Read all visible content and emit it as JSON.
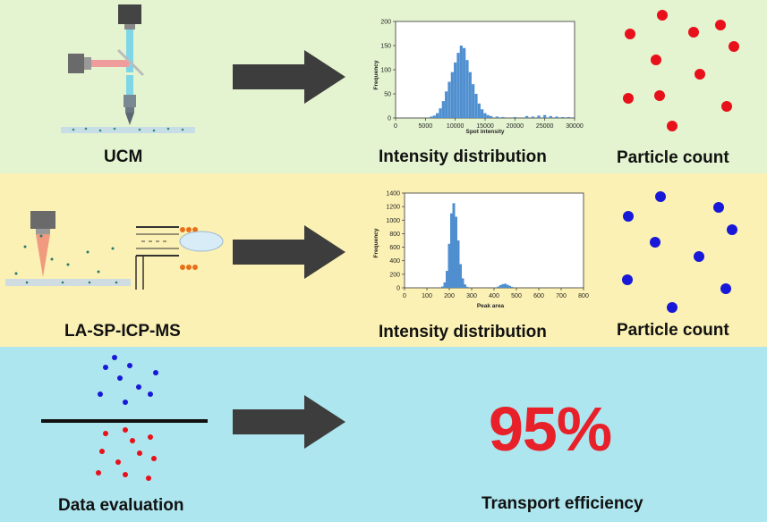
{
  "colors": {
    "band1": "#e4f4d0",
    "band2": "#fbf1b4",
    "band3": "#ade6ee",
    "red": "#e8101a",
    "blue": "#1818d8",
    "arrow": "#3d3d3d",
    "bar": "#4f8fcf",
    "big_red": "#e8202a"
  },
  "rows": {
    "ucm": {
      "method_label": "UCM",
      "result_label": "Intensity distribution",
      "count_label": "Particle count"
    },
    "laspicpms": {
      "method_label": "LA-SP-ICP-MS",
      "result_label": "Intensity distribution",
      "count_label": "Particle count"
    },
    "evaluation": {
      "method_label": "Data evaluation",
      "result_value": "95%",
      "result_label": "Transport efficiency"
    }
  },
  "chart_data": [
    {
      "type": "bar",
      "title": "",
      "xlabel": "Spot intensity",
      "ylabel": "Frequency",
      "xlim": [
        0,
        30000
      ],
      "ylim": [
        0,
        200
      ],
      "xticks": [
        "0",
        "5000",
        "10000",
        "15000",
        "20000",
        "25000",
        "30000"
      ],
      "yticks": [
        "0",
        "50",
        "100",
        "150",
        "200"
      ],
      "x": [
        6000,
        6500,
        7000,
        7500,
        8000,
        8500,
        9000,
        9500,
        10000,
        10500,
        11000,
        11500,
        12000,
        12500,
        13000,
        13500,
        14000,
        14500,
        15000,
        15500,
        16000,
        17000,
        18000,
        20000,
        22000,
        23000,
        24000,
        25000,
        26000,
        27000,
        28000,
        29000
      ],
      "values": [
        3,
        5,
        10,
        20,
        35,
        55,
        75,
        95,
        115,
        135,
        150,
        145,
        120,
        95,
        70,
        50,
        30,
        18,
        10,
        6,
        4,
        3,
        2,
        2,
        4,
        3,
        5,
        6,
        4,
        3,
        2,
        2
      ]
    },
    {
      "type": "bar",
      "title": "",
      "xlabel": "Peak area",
      "ylabel": "Frequency",
      "xlim": [
        0,
        800
      ],
      "ylim": [
        0,
        1400
      ],
      "xticks": [
        "0",
        "100",
        "200",
        "300",
        "400",
        "500",
        "600",
        "700",
        "800"
      ],
      "yticks": [
        "0",
        "200",
        "400",
        "600",
        "800",
        "1000",
        "1200",
        "1400"
      ],
      "x": [
        170,
        180,
        190,
        200,
        210,
        220,
        230,
        240,
        250,
        260,
        270,
        280,
        420,
        430,
        440,
        450,
        460,
        470,
        480
      ],
      "values": [
        20,
        80,
        250,
        650,
        1100,
        1250,
        1050,
        700,
        350,
        140,
        50,
        15,
        20,
        40,
        55,
        60,
        45,
        30,
        15
      ]
    }
  ]
}
